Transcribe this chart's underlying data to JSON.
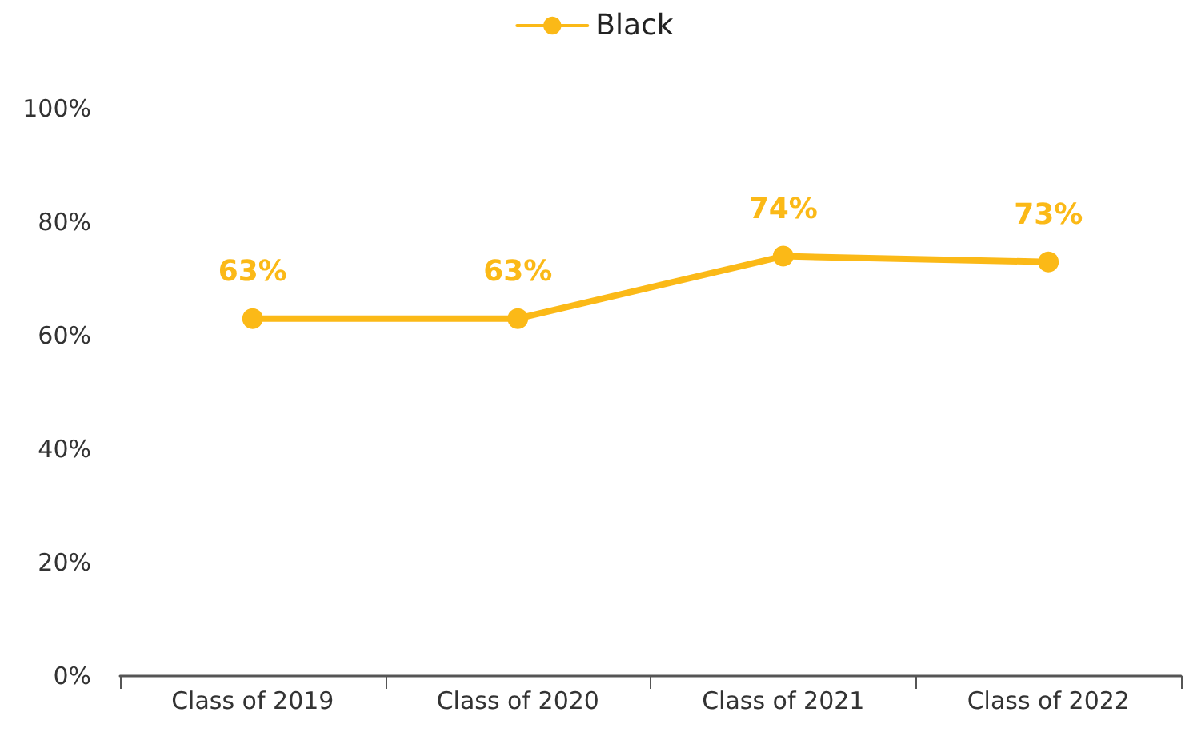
{
  "chart_data": {
    "type": "line",
    "categories": [
      "Class of 2019",
      "Class of 2020",
      "Class of 2021",
      "Class of 2022"
    ],
    "series": [
      {
        "name": "Black",
        "color": "#fbb917",
        "values": [
          63,
          63,
          74,
          73
        ],
        "value_labels": [
          "63%",
          "63%",
          "74%",
          "73%"
        ]
      }
    ],
    "ylim": [
      0,
      100
    ],
    "yticks": [
      {
        "value": 0,
        "label": "0%"
      },
      {
        "value": 20,
        "label": "20%"
      },
      {
        "value": 40,
        "label": "40%"
      },
      {
        "value": 60,
        "label": "60%"
      },
      {
        "value": 80,
        "label": "80%"
      },
      {
        "value": 100,
        "label": "100%"
      }
    ],
    "grid": false,
    "legend": "top",
    "marker": "circle",
    "line_style": "solid"
  }
}
